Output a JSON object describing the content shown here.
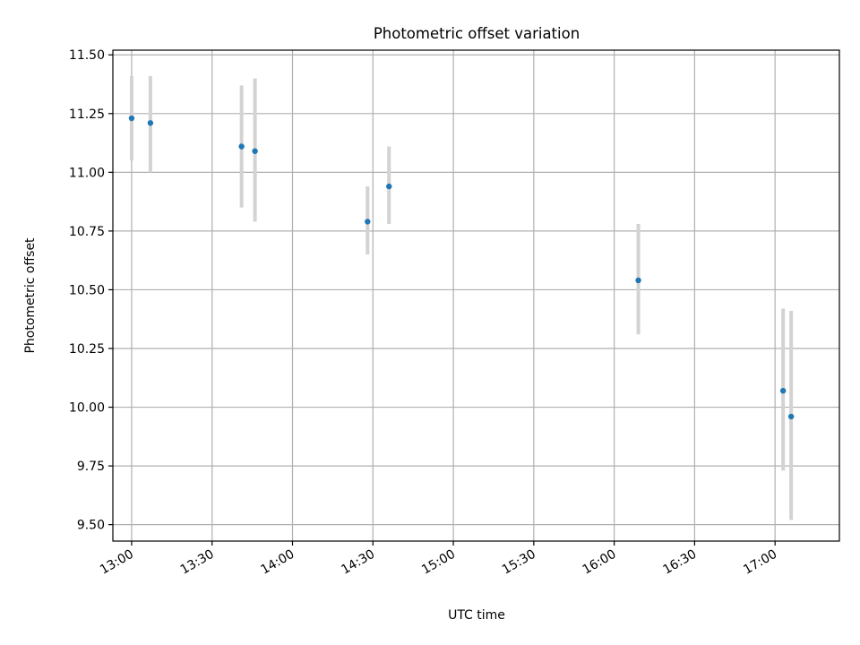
{
  "chart_data": {
    "type": "scatter",
    "title": "Photometric offset variation",
    "xlabel": "UTC time",
    "ylabel": "Photometric offset",
    "x_axis": {
      "unit": "time",
      "range": [
        "12:53",
        "17:24"
      ],
      "ticks": [
        "13:00",
        "13:30",
        "14:00",
        "14:30",
        "15:00",
        "15:30",
        "16:00",
        "16:30",
        "17:00"
      ]
    },
    "y_axis": {
      "range": [
        9.43,
        11.52
      ],
      "ticks": [
        "9.50",
        "9.75",
        "10.00",
        "10.25",
        "10.50",
        "10.75",
        "11.00",
        "11.25",
        "11.50"
      ]
    },
    "grid": true,
    "series": [
      {
        "points": [
          {
            "x": "13:00",
            "y": 11.23,
            "err_low": 11.05,
            "err_high": 11.41
          },
          {
            "x": "13:07",
            "y": 11.21,
            "err_low": 11.0,
            "err_high": 11.41
          },
          {
            "x": "13:41",
            "y": 11.11,
            "err_low": 10.85,
            "err_high": 11.37
          },
          {
            "x": "13:46",
            "y": 11.09,
            "err_low": 10.79,
            "err_high": 11.4
          },
          {
            "x": "14:28",
            "y": 10.79,
            "err_low": 10.65,
            "err_high": 10.94
          },
          {
            "x": "14:36",
            "y": 10.94,
            "err_low": 10.78,
            "err_high": 11.11
          },
          {
            "x": "16:09",
            "y": 10.54,
            "err_low": 10.31,
            "err_high": 10.78
          },
          {
            "x": "17:03",
            "y": 10.07,
            "err_low": 9.73,
            "err_high": 10.42
          },
          {
            "x": "17:06",
            "y": 9.96,
            "err_low": 9.52,
            "err_high": 10.41
          }
        ]
      }
    ],
    "colors": {
      "marker": "#1f77b4",
      "errorbar": "#d3d3d3",
      "grid": "#b0b0b0",
      "axes": "#000000"
    }
  }
}
